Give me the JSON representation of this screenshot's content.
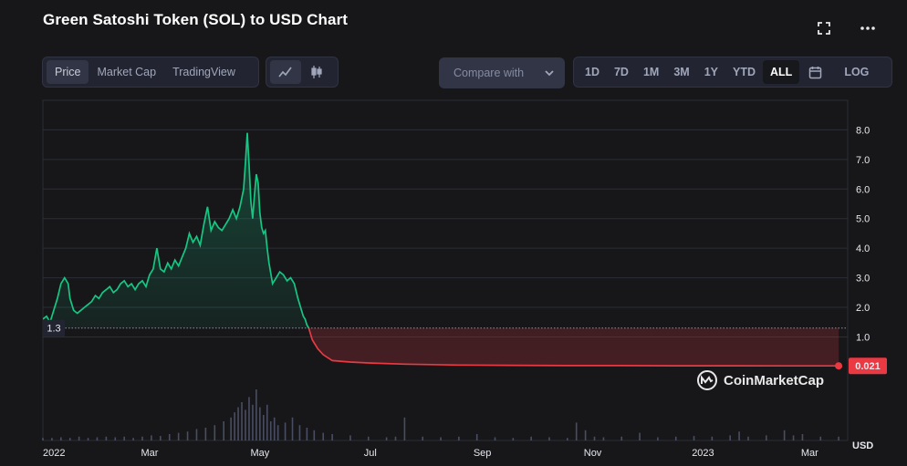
{
  "header": {
    "title": "Green Satoshi Token (SOL) to USD Chart"
  },
  "toolbar": {
    "view_tabs": [
      "Price",
      "Market Cap",
      "TradingView"
    ],
    "compare_label": "Compare with",
    "ranges": [
      "1D",
      "7D",
      "1M",
      "3M",
      "1Y",
      "YTD",
      "ALL"
    ],
    "active_range": "ALL",
    "log_label": "LOG"
  },
  "icons": {
    "fullscreen": "fullscreen-icon",
    "more": "more-icon",
    "line_chart": "line-chart-icon",
    "candle_chart": "candlestick-icon",
    "calendar": "calendar-icon"
  },
  "colors": {
    "up": "#16c784",
    "down": "#ea3943",
    "background": "#17171a"
  },
  "watermark": "CoinMarketCap",
  "chart_data": {
    "type": "area",
    "title": "Green Satoshi Token (SOL) to USD Chart",
    "xlabel": "",
    "ylabel": "USD",
    "baseline_label": "1.3",
    "baseline": 1.3,
    "current_price_label": "0.021",
    "current_price": 0.021,
    "ylim": [
      -2.5,
      9.0
    ],
    "yticks": [
      1.0,
      2.0,
      3.0,
      4.0,
      5.0,
      6.0,
      7.0,
      8.0
    ],
    "ytick_labels": [
      "1.0",
      "2.0",
      "3.0",
      "4.0",
      "5.0",
      "6.0",
      "7.0",
      "8.0"
    ],
    "xlim": [
      0,
      445
    ],
    "xticks": [
      0,
      59,
      120,
      181,
      243,
      304,
      365,
      424
    ],
    "xtick_labels": [
      "2022",
      "Mar",
      "May",
      "Jul",
      "Sep",
      "Nov",
      "2023",
      "Mar"
    ],
    "series": [
      {
        "name": "Price",
        "x": [
          0,
          2,
          4,
          6,
          8,
          10,
          12,
          14,
          15,
          17,
          19,
          21,
          23,
          25,
          27,
          29,
          31,
          33,
          35,
          37,
          39,
          41,
          43,
          45,
          47,
          49,
          51,
          53,
          55,
          57,
          59,
          61,
          63,
          65,
          67,
          69,
          71,
          73,
          75,
          77,
          79,
          81,
          83,
          85,
          87,
          89,
          91,
          93,
          95,
          97,
          99,
          101,
          103,
          105,
          107,
          109,
          111,
          112,
          113,
          114,
          115,
          116,
          117,
          118,
          119,
          120,
          121,
          122,
          123,
          124,
          125,
          127,
          129,
          131,
          133,
          135,
          137,
          139,
          141,
          143,
          144,
          145,
          146,
          147,
          148,
          149,
          150,
          152,
          155,
          160,
          170,
          180,
          200,
          230,
          260,
          290,
          320,
          350,
          380,
          410,
          440
        ],
        "values": [
          1.6,
          1.7,
          1.5,
          1.9,
          2.3,
          2.8,
          3.0,
          2.8,
          2.3,
          1.9,
          1.8,
          1.9,
          2.0,
          2.1,
          2.2,
          2.4,
          2.3,
          2.5,
          2.6,
          2.7,
          2.5,
          2.6,
          2.8,
          2.9,
          2.7,
          2.8,
          2.6,
          2.8,
          2.9,
          2.7,
          3.1,
          3.3,
          4.0,
          3.3,
          3.2,
          3.5,
          3.3,
          3.6,
          3.4,
          3.7,
          4.0,
          4.5,
          4.2,
          4.4,
          4.1,
          4.8,
          5.4,
          4.6,
          4.9,
          4.7,
          4.6,
          4.8,
          5.0,
          5.3,
          5.0,
          5.4,
          6.0,
          6.9,
          7.9,
          6.8,
          5.6,
          5.0,
          5.8,
          6.5,
          6.2,
          5.2,
          4.7,
          4.5,
          4.6,
          4.0,
          3.5,
          2.8,
          3.0,
          3.2,
          3.1,
          2.9,
          3.0,
          2.8,
          2.3,
          1.9,
          1.7,
          1.6,
          1.4,
          1.3,
          1.1,
          0.9,
          0.8,
          0.6,
          0.4,
          0.2,
          0.15,
          0.12,
          0.08,
          0.05,
          0.04,
          0.03,
          0.03,
          0.025,
          0.024,
          0.022,
          0.021
        ]
      }
    ],
    "volume_bars": {
      "x": [
        0,
        5,
        10,
        15,
        20,
        25,
        30,
        35,
        40,
        45,
        50,
        55,
        60,
        65,
        70,
        75,
        80,
        85,
        90,
        95,
        100,
        104,
        106,
        108,
        110,
        112,
        114,
        116,
        118,
        120,
        122,
        124,
        126,
        128,
        130,
        134,
        138,
        142,
        146,
        150,
        155,
        160,
        170,
        180,
        190,
        195,
        200,
        210,
        220,
        230,
        240,
        250,
        260,
        270,
        280,
        290,
        295,
        300,
        305,
        310,
        320,
        330,
        340,
        350,
        360,
        370,
        380,
        385,
        390,
        400,
        410,
        415,
        420,
        430,
        440
      ],
      "values": [
        0.2,
        0.2,
        0.25,
        0.2,
        0.3,
        0.2,
        0.25,
        0.3,
        0.25,
        0.3,
        0.2,
        0.3,
        0.4,
        0.35,
        0.5,
        0.6,
        0.7,
        0.9,
        1.0,
        1.2,
        1.5,
        1.8,
        2.2,
        2.6,
        3.0,
        2.4,
        3.4,
        2.8,
        4.0,
        2.6,
        2.0,
        2.8,
        1.5,
        1.8,
        1.2,
        1.4,
        1.8,
        1.2,
        1.0,
        0.8,
        0.6,
        0.5,
        0.4,
        0.3,
        0.25,
        0.3,
        1.8,
        0.3,
        0.25,
        0.3,
        0.5,
        0.25,
        0.2,
        0.3,
        0.25,
        0.2,
        1.4,
        0.8,
        0.3,
        0.25,
        0.3,
        0.6,
        0.25,
        0.3,
        0.35,
        0.3,
        0.4,
        0.7,
        0.3,
        0.4,
        0.8,
        0.4,
        0.5,
        0.3,
        0.3
      ]
    }
  }
}
